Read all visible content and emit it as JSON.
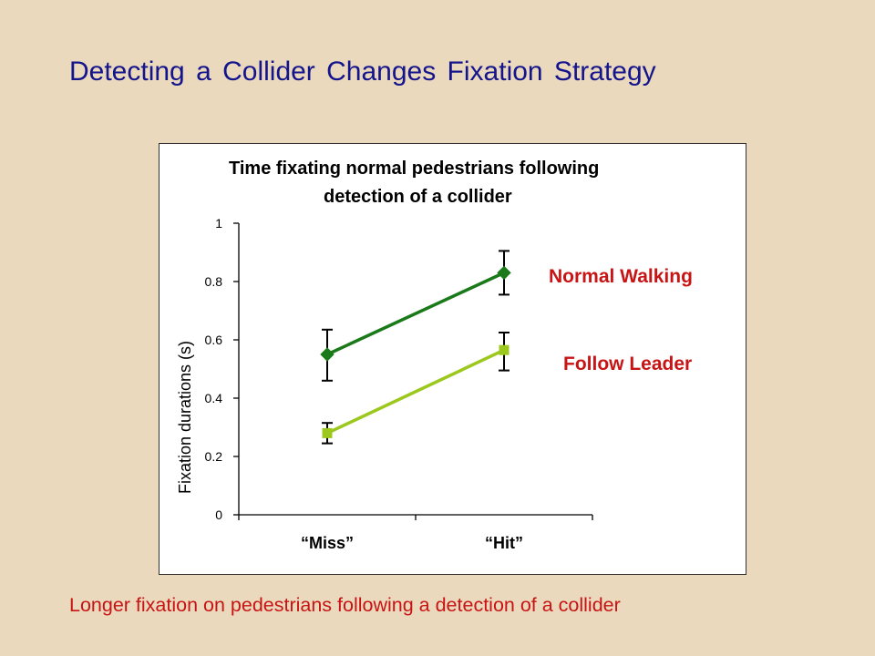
{
  "slide": {
    "title": "Detecting a Collider Changes Fixation Strategy",
    "caption": "Longer fixation on pedestrians following a detection of a collider"
  },
  "chart_data": {
    "type": "line",
    "title_lines": [
      "Time fixating normal pedestrians following",
      "detection of a collider"
    ],
    "xlabel": "",
    "ylabel": "Fixation durations (s)",
    "categories": [
      "“Miss”",
      "“Hit”"
    ],
    "ylim": [
      0,
      1
    ],
    "yticks": [
      0,
      0.2,
      0.4,
      0.6,
      0.8,
      1
    ],
    "ytick_labels": [
      "0",
      "0.2",
      "0.4",
      "0.6",
      "0.8",
      "1"
    ],
    "grid": false,
    "legend_placement": "right",
    "series": [
      {
        "name": "Normal Walking",
        "values": [
          0.55,
          0.83
        ],
        "err_low": [
          0.46,
          0.755
        ],
        "err_high": [
          0.635,
          0.905
        ],
        "color": "#1a7a1a",
        "marker": "diamond"
      },
      {
        "name": "Follow Leader",
        "values": [
          0.28,
          0.565
        ],
        "err_low": [
          0.245,
          0.495
        ],
        "err_high": [
          0.315,
          0.625
        ],
        "color": "#9cc81e",
        "marker": "square"
      }
    ],
    "legend_color": "#c81414"
  }
}
